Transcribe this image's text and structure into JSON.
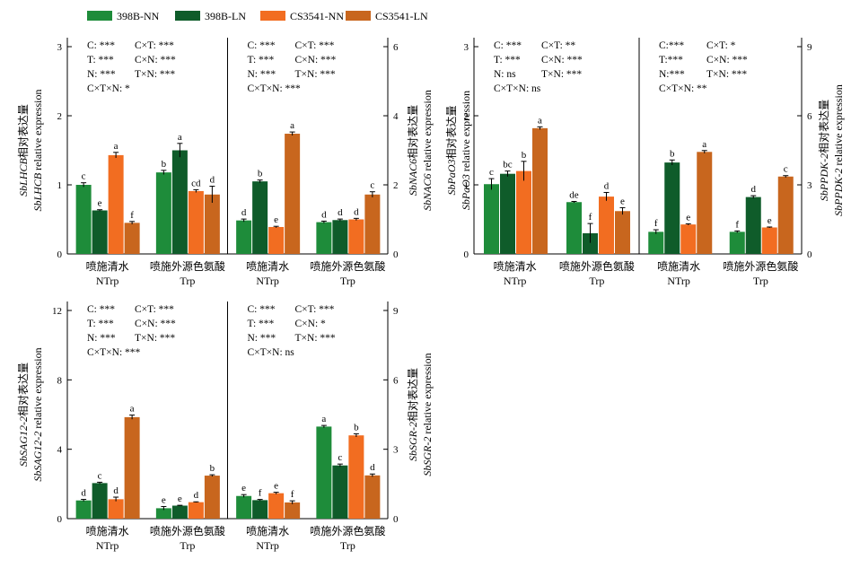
{
  "legend": [
    {
      "name": "398B-NN",
      "color": "#1e8c3a"
    },
    {
      "name": "398B-LN",
      "color": "#0f5c2a"
    },
    {
      "name": "CS3541-NN",
      "color": "#f26d21"
    },
    {
      "name": "CS3541-LN",
      "color": "#c8661e"
    }
  ],
  "chart_data": [
    {
      "id": "p1",
      "type": "bar",
      "groups": [
        "NTrp",
        "Trp",
        "NTrp",
        "Trp"
      ],
      "group_labels_cn": [
        "喷施清水",
        "喷施外源色氨酸",
        "喷施清水",
        "喷施外源色氨酸"
      ],
      "left": {
        "ylabel_italic": "SbLHCB",
        "ylabel_cn": "相对表达量",
        "ylabel_en": "relative expression",
        "ylim": [
          0,
          3
        ],
        "ticks": [
          "0",
          "1",
          "2",
          "3"
        ],
        "stats": [
          [
            "C: ***",
            "C×T: ***"
          ],
          [
            "T: ***",
            "C×N: ***"
          ],
          [
            "N: ***",
            "T×N: ***"
          ],
          [
            "C×T×N: *",
            ""
          ]
        ],
        "values": [
          [
            1.0,
            0.63,
            1.43,
            0.45
          ],
          [
            1.18,
            1.5,
            0.91,
            0.86
          ]
        ],
        "errors": [
          [
            0.03,
            0.01,
            0.04,
            0.02
          ],
          [
            0.03,
            0.1,
            0.02,
            0.12
          ]
        ],
        "letters": [
          [
            "c",
            "e",
            "a",
            "f"
          ],
          [
            "b",
            "a",
            "cd",
            "d"
          ]
        ]
      },
      "right": {
        "ylabel_italic": "SbNAC6",
        "ylabel_cn": "相对表达量",
        "ylabel_en": "relative expression",
        "ylim": [
          0,
          6
        ],
        "ticks": [
          "0",
          "2",
          "4",
          "6"
        ],
        "stats": [
          [
            "C: ***",
            "C×T: ***"
          ],
          [
            "T: ***",
            "C×N: ***"
          ],
          [
            "N: ***",
            "T×N: ***"
          ],
          [
            "C×T×N: ***",
            ""
          ]
        ],
        "values": [
          [
            0.97,
            2.1,
            0.78,
            3.48
          ],
          [
            0.92,
            0.98,
            1.0,
            1.72
          ]
        ],
        "errors": [
          [
            0.04,
            0.04,
            0.02,
            0.05
          ],
          [
            0.03,
            0.03,
            0.03,
            0.08
          ]
        ],
        "letters": [
          [
            "d",
            "b",
            "e",
            "a"
          ],
          [
            "d",
            "d",
            "d",
            "c"
          ]
        ]
      }
    },
    {
      "id": "p2",
      "type": "bar",
      "groups": [
        "NTrp",
        "Trp",
        "NTrp",
        "Trp"
      ],
      "group_labels_cn": [
        "喷施清水",
        "喷施外源色氨酸",
        "喷施清水",
        "喷施外源色氨酸"
      ],
      "left": {
        "ylabel_italic": "SbPaO3",
        "ylabel_cn": "相对表达量",
        "ylabel_en": "relative expression",
        "ylim": [
          0,
          3
        ],
        "ticks": [
          "0",
          "1",
          "2",
          "3"
        ],
        "stats": [
          [
            "C: ***",
            "C×T: **"
          ],
          [
            "T: ***",
            "C×N: ***"
          ],
          [
            "N: ns",
            "T×N: ***"
          ],
          [
            "C×T×N: ns",
            ""
          ]
        ],
        "values": [
          [
            1.01,
            1.16,
            1.2,
            1.82
          ],
          [
            0.75,
            0.3,
            0.83,
            0.62
          ]
        ],
        "errors": [
          [
            0.08,
            0.04,
            0.14,
            0.02
          ],
          [
            0.01,
            0.14,
            0.06,
            0.05
          ]
        ],
        "letters": [
          [
            "c",
            "bc",
            "b",
            "a"
          ],
          [
            "de",
            "f",
            "d",
            "e"
          ]
        ]
      },
      "right": {
        "ylabel_italic": "SbPPDK-2",
        "ylabel_cn": "相对表达量",
        "ylabel_en": "relative expression",
        "ylim": [
          0,
          9
        ],
        "ticks": [
          "0",
          "3",
          "6",
          "9"
        ],
        "stats": [
          [
            "C:***",
            "C×T: *"
          ],
          [
            "T:***",
            "C×N: ***"
          ],
          [
            "N:***",
            "T×N: ***"
          ],
          [
            "C×T×N: **",
            ""
          ]
        ],
        "values": [
          [
            0.96,
            3.97,
            1.28,
            4.43
          ],
          [
            0.96,
            2.47,
            1.15,
            3.36
          ]
        ],
        "errors": [
          [
            0.09,
            0.11,
            0.03,
            0.06
          ],
          [
            0.04,
            0.06,
            0.02,
            0.04
          ]
        ],
        "letters": [
          [
            "f",
            "b",
            "e",
            "a"
          ],
          [
            "f",
            "d",
            "e",
            "c"
          ]
        ]
      }
    },
    {
      "id": "p3",
      "type": "bar",
      "groups": [
        "NTrp",
        "Trp",
        "NTrp",
        "Trp"
      ],
      "group_labels_cn": [
        "喷施清水",
        "喷施外源色氨酸",
        "喷施清水",
        "喷施外源色氨酸"
      ],
      "left": {
        "ylabel_italic": "SbSAG12-2",
        "ylabel_cn": "相对表达量",
        "ylabel_en": "relative expression",
        "ylim": [
          0,
          12
        ],
        "ticks": [
          "0",
          "4",
          "8",
          "12"
        ],
        "stats": [
          [
            "C: ***",
            "C×T: ***"
          ],
          [
            "T: ***",
            "C×N: ***"
          ],
          [
            "N: ***",
            "T×N: ***"
          ],
          [
            "C×T×N: ***",
            ""
          ]
        ],
        "values": [
          [
            1.05,
            2.05,
            1.12,
            5.85
          ],
          [
            0.6,
            0.75,
            0.95,
            2.48
          ]
        ],
        "errors": [
          [
            0.06,
            0.05,
            0.12,
            0.12
          ],
          [
            0.1,
            0.02,
            0.02,
            0.05
          ]
        ],
        "letters": [
          [
            "d",
            "c",
            "d",
            "a"
          ],
          [
            "e",
            "e",
            "d",
            "b"
          ]
        ]
      },
      "right": {
        "ylabel_italic": "SbSGR-2",
        "ylabel_cn": "相对表达量",
        "ylabel_en": "relative expression",
        "ylim": [
          0,
          9
        ],
        "ticks": [
          "0",
          "3",
          "6",
          "9"
        ],
        "stats": [
          [
            "C: ***",
            "C×T: ***"
          ],
          [
            "T: ***",
            "C×N: *"
          ],
          [
            "N: ***",
            "T×N: ***"
          ],
          [
            "C×T×N: ns",
            ""
          ]
        ],
        "values": [
          [
            0.98,
            0.8,
            1.1,
            0.7
          ],
          [
            3.98,
            2.3,
            3.6,
            1.87
          ]
        ],
        "errors": [
          [
            0.06,
            0.03,
            0.04,
            0.07
          ],
          [
            0.05,
            0.06,
            0.07,
            0.06
          ]
        ],
        "letters": [
          [
            "e",
            "f",
            "e",
            "f"
          ],
          [
            "a",
            "c",
            "b",
            "d"
          ]
        ]
      }
    }
  ]
}
